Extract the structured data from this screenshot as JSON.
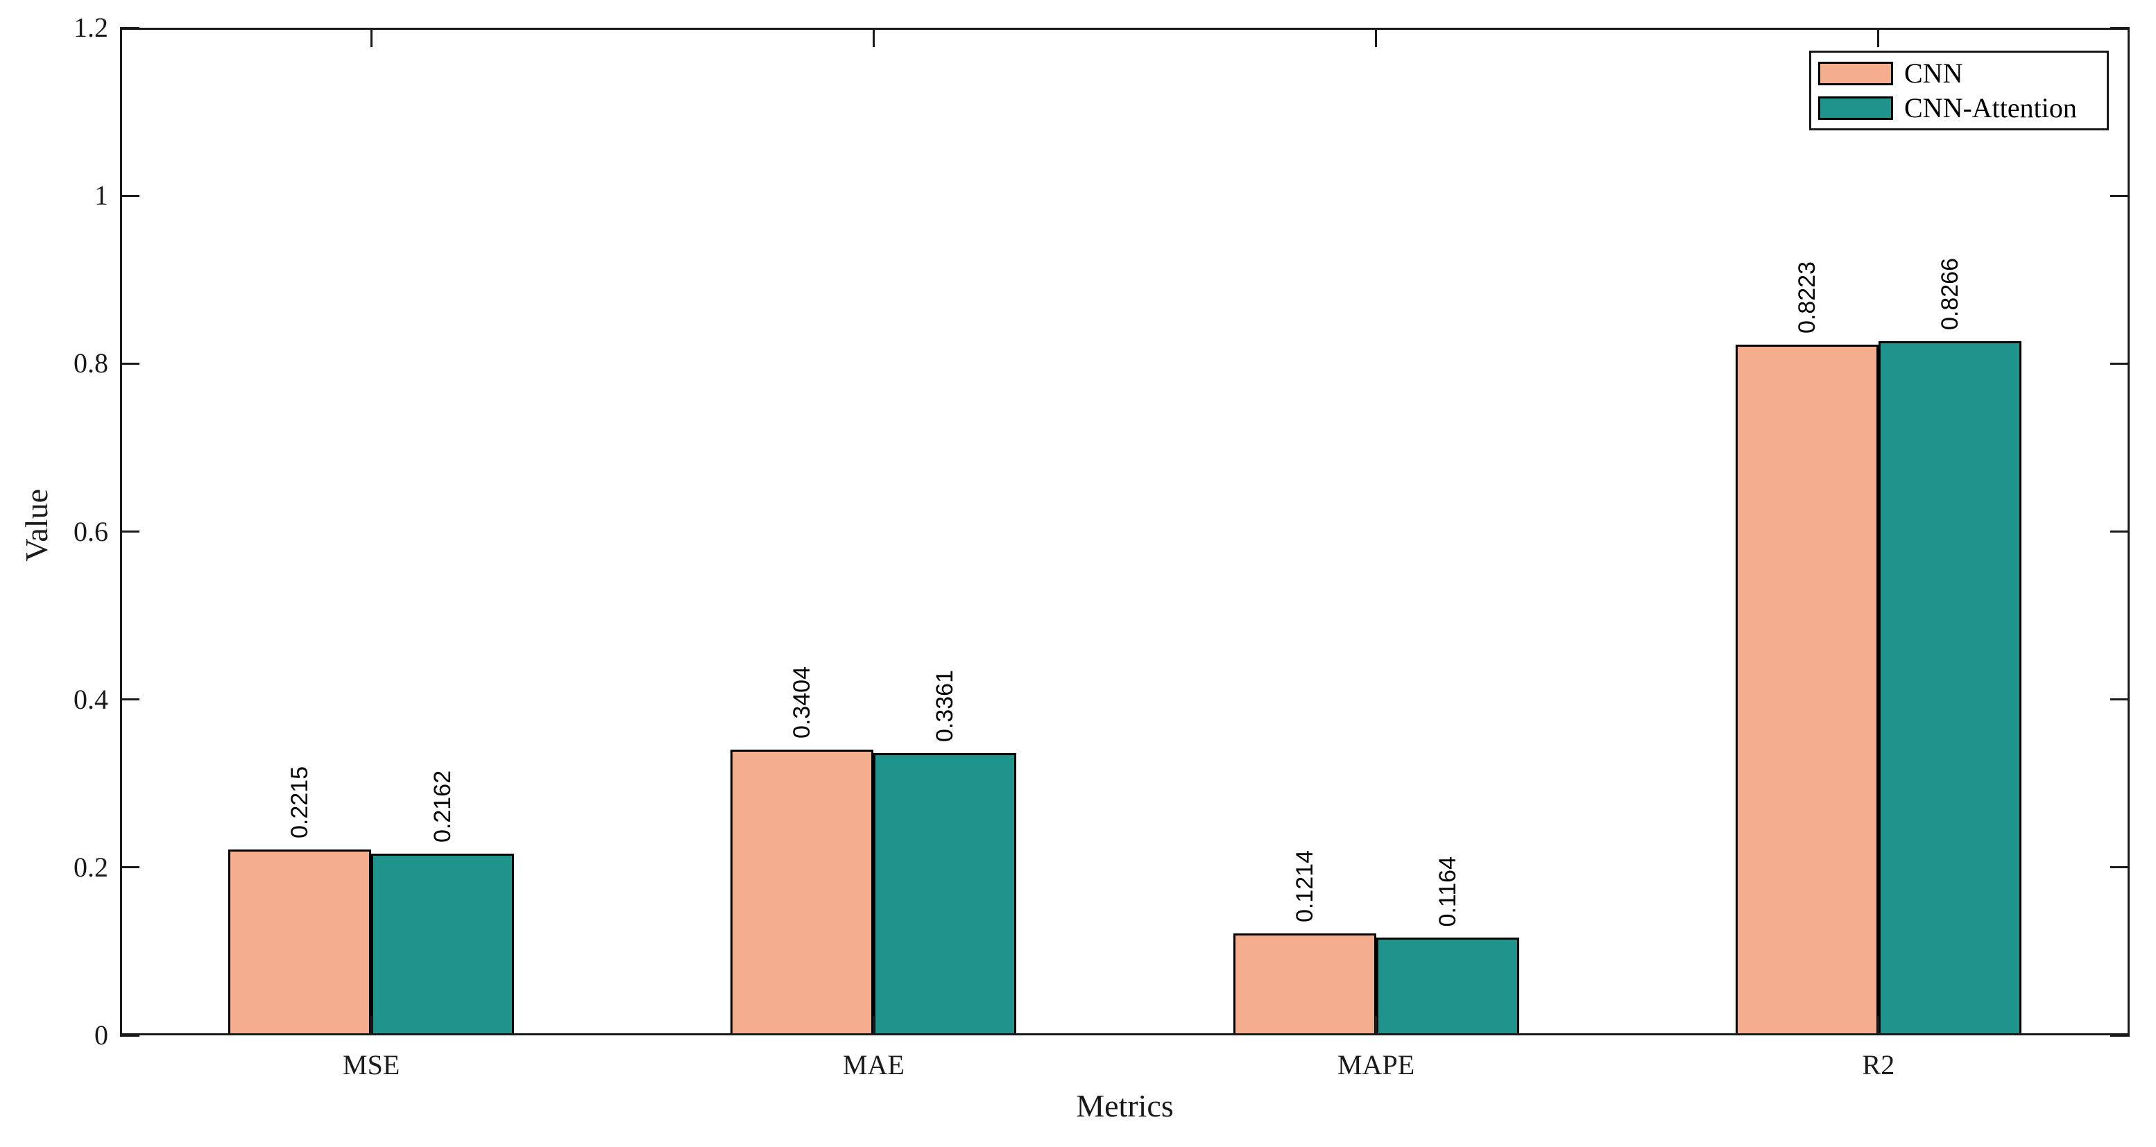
{
  "chart_data": {
    "type": "bar",
    "title": "",
    "categories": [
      "MSE",
      "MAE",
      "MAPE",
      "R2"
    ],
    "series": [
      {
        "name": "CNN",
        "color": "#F5AE8D",
        "values": [
          0.2215,
          0.3404,
          0.1214,
          0.8223
        ],
        "labels": [
          "0.2215",
          "0.3404",
          "0.1214",
          "0.8223"
        ]
      },
      {
        "name": "CNN-Attention",
        "color": "#1F948C",
        "values": [
          0.2162,
          0.3361,
          0.1164,
          0.8266
        ],
        "labels": [
          "0.2162",
          "0.3361",
          "0.1164",
          "0.8266"
        ]
      }
    ],
    "xlabel": "Metrics",
    "ylabel": "Value",
    "ylim": [
      0,
      1.2
    ],
    "ytick_labels": [
      "0",
      "0.2",
      "0.4",
      "0.6",
      "0.8",
      "1",
      "1.2"
    ],
    "bar_edge_color": "#000000",
    "axis_color": "#1a1a1a",
    "bar_label_rotation": 90,
    "legend_position": "top-right",
    "grid": false
  }
}
